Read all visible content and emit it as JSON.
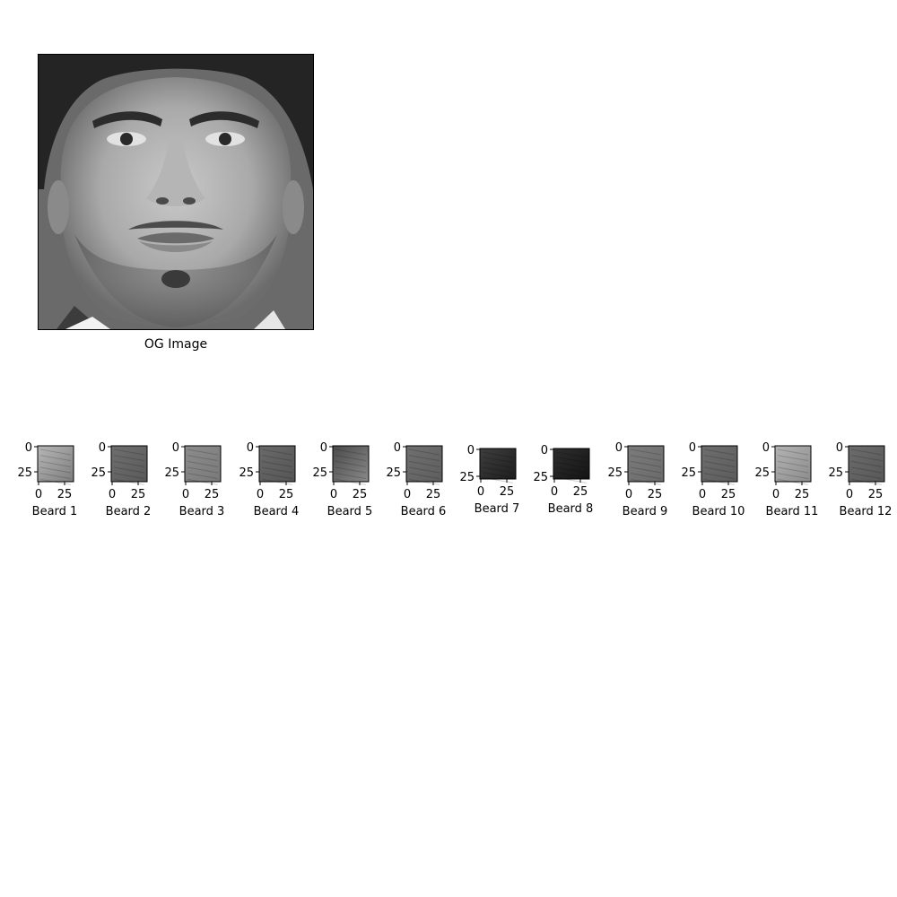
{
  "figure": {
    "main_image": {
      "caption": "OG Image"
    },
    "patches": [
      {
        "caption": "Beard 1",
        "y_ticks": [
          "0",
          "25"
        ],
        "x_ticks": [
          "0",
          "25"
        ],
        "tone_top": "#b7b7b7",
        "tone_bottom": "#7e7e7e"
      },
      {
        "caption": "Beard 2",
        "y_ticks": [
          "0",
          "25"
        ],
        "x_ticks": [
          "0",
          "25"
        ],
        "tone_top": "#6f6f6f",
        "tone_bottom": "#5a5a5a"
      },
      {
        "caption": "Beard 3",
        "y_ticks": [
          "0",
          "25"
        ],
        "x_ticks": [
          "0",
          "25"
        ],
        "tone_top": "#8c8c8c",
        "tone_bottom": "#7a7a7a"
      },
      {
        "caption": "Beard 4",
        "y_ticks": [
          "0",
          "25"
        ],
        "x_ticks": [
          "0",
          "25"
        ],
        "tone_top": "#6a6a6a",
        "tone_bottom": "#555555"
      },
      {
        "caption": "Beard 5",
        "y_ticks": [
          "0",
          "25"
        ],
        "x_ticks": [
          "0",
          "25"
        ],
        "tone_top": "#4a4a4a",
        "tone_bottom": "#8a8a8a"
      },
      {
        "caption": "Beard 6",
        "y_ticks": [
          "0",
          "25"
        ],
        "x_ticks": [
          "0",
          "25"
        ],
        "tone_top": "#707070",
        "tone_bottom": "#5e5e5e"
      },
      {
        "caption": "Beard 7",
        "y_ticks": [
          "0",
          "25"
        ],
        "x_ticks": [
          "0",
          "25"
        ],
        "tone_top": "#3e3e3e",
        "tone_bottom": "#1e1e1e"
      },
      {
        "caption": "Beard 8",
        "y_ticks": [
          "0",
          "25"
        ],
        "x_ticks": [
          "0",
          "25"
        ],
        "tone_top": "#2e2e2e",
        "tone_bottom": "#141414"
      },
      {
        "caption": "Beard 9",
        "y_ticks": [
          "0",
          "25"
        ],
        "x_ticks": [
          "0",
          "25"
        ],
        "tone_top": "#7c7c7c",
        "tone_bottom": "#6a6a6a"
      },
      {
        "caption": "Beard 10",
        "y_ticks": [
          "0",
          "25"
        ],
        "x_ticks": [
          "0",
          "25"
        ],
        "tone_top": "#6e6e6e",
        "tone_bottom": "#5c5c5c"
      },
      {
        "caption": "Beard 11",
        "y_ticks": [
          "0",
          "25"
        ],
        "x_ticks": [
          "0",
          "25"
        ],
        "tone_top": "#b4b4b4",
        "tone_bottom": "#8c8c8c"
      },
      {
        "caption": "Beard 12",
        "y_ticks": [
          "0",
          "25"
        ],
        "x_ticks": [
          "0",
          "25"
        ],
        "tone_top": "#6c6c6c",
        "tone_bottom": "#585858"
      }
    ]
  }
}
